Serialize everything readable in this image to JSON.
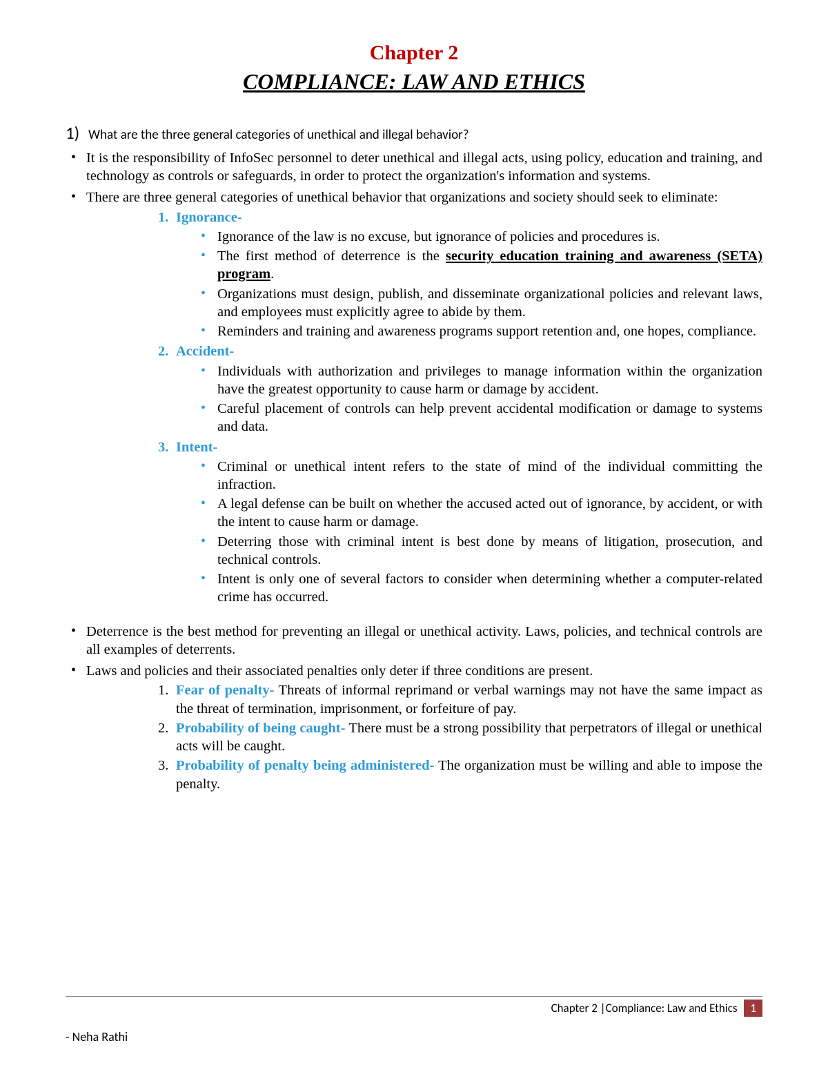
{
  "header": {
    "chapter": "Chapter 2",
    "title": "COMPLIANCE: LAW AND ETHICS"
  },
  "question": {
    "number": "1)",
    "text": "What are the three general categories of unethical and illegal behavior?"
  },
  "intro_bullets": [
    "It is the responsibility of InfoSec personnel to deter unethical and illegal acts, using policy, education and training, and technology as controls or safeguards, in order to protect the organization's information and systems.",
    "There are three general categories of unethical behavior that organizations and society should seek to eliminate:"
  ],
  "categories": [
    {
      "num": "1.",
      "title": "Ignorance-",
      "points": [
        {
          "text": "Ignorance of the law is no excuse, but ignorance of policies and procedures is."
        },
        {
          "pre": "The first method of deterrence is the ",
          "bold": "security education training and awareness (SETA) program",
          "post": "."
        },
        {
          "text": "Organizations must design, publish, and disseminate organizational policies and relevant laws, and employees must explicitly agree to abide by them."
        },
        {
          "text": "Reminders and training and awareness programs support retention and, one hopes, compliance."
        }
      ]
    },
    {
      "num": "2.",
      "title": "Accident-",
      "points": [
        {
          "text": "Individuals with authorization and privileges to manage information within the organization have the greatest opportunity to cause harm or damage by accident."
        },
        {
          "text": "Careful placement of controls can help prevent accidental modification or damage to systems and data."
        }
      ]
    },
    {
      "num": "3.",
      "title": "Intent-",
      "points": [
        {
          "text": "Criminal or unethical intent refers to the state of mind of the individual committing the infraction."
        },
        {
          "text": "A legal defense can be built on whether the accused acted out of ignorance, by accident, or with the intent to cause harm or damage."
        },
        {
          "text": "Deterring those with criminal intent is best done by means of litigation, prosecution, and technical controls."
        },
        {
          "text": "Intent is only one of several factors to consider when determining whether a computer-related crime has occurred."
        }
      ]
    }
  ],
  "deterrence_bullets": [
    "Deterrence is the best method for preventing an illegal or unethical activity. Laws, policies, and technical controls are all examples of deterrents.",
    "Laws and policies and their associated penalties only deter if three conditions are present."
  ],
  "conditions": [
    {
      "num": "1.",
      "term": "Fear of penalty-",
      "text": " Threats of informal reprimand or verbal warnings may not have the same impact as the threat of termination, imprisonment, or forfeiture of pay."
    },
    {
      "num": "2.",
      "term": "Probability of being caught-",
      "text": " There must be a strong possibility that perpetrators of illegal or unethical acts will be caught."
    },
    {
      "num": "3.",
      "term": "Probability of penalty being administered-",
      "text": " The organization must be willing and able to impose the penalty."
    }
  ],
  "footer": {
    "text": "Chapter 2 |Compliance: Law and Ethics",
    "page": "1",
    "author": "-      Neha Rathi"
  },
  "colors": {
    "title_red": "#c00000",
    "accent_blue": "#2e9bd6",
    "page_bg": "#9d3a39"
  }
}
